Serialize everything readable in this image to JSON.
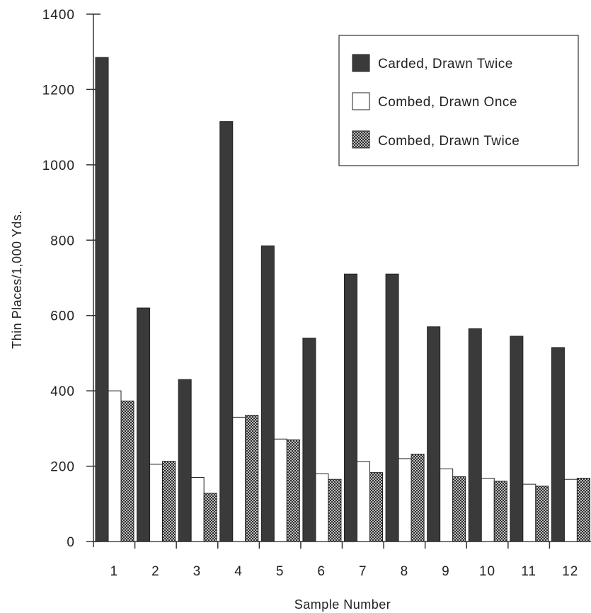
{
  "chart_data": {
    "type": "bar",
    "title": "",
    "xlabel": "Sample Number",
    "ylabel": "Thin Places/1,000 Yds.",
    "ylim": [
      0,
      1400
    ],
    "yticks": [
      0,
      200,
      400,
      600,
      800,
      1000,
      1200,
      1400
    ],
    "categories": [
      "1",
      "2",
      "3",
      "4",
      "5",
      "6",
      "7",
      "8",
      "9",
      "10",
      "11",
      "12"
    ],
    "series": [
      {
        "name": "Carded, Drawn Twice",
        "color": "#3a3a3a",
        "fill": "solid",
        "values": [
          1285,
          620,
          430,
          1115,
          785,
          540,
          710,
          710,
          570,
          565,
          545,
          515
        ]
      },
      {
        "name": "Combed, Drawn Once",
        "color": "#ffffff",
        "fill": "white",
        "values": [
          400,
          205,
          170,
          330,
          272,
          180,
          212,
          220,
          193,
          168,
          152,
          165
        ]
      },
      {
        "name": "Combed, Drawn Twice",
        "color": "#888888",
        "fill": "crosshatch",
        "values": [
          373,
          213,
          128,
          335,
          270,
          165,
          183,
          232,
          172,
          160,
          147,
          168
        ]
      }
    ],
    "legend_position": "top-right",
    "grid": false
  }
}
